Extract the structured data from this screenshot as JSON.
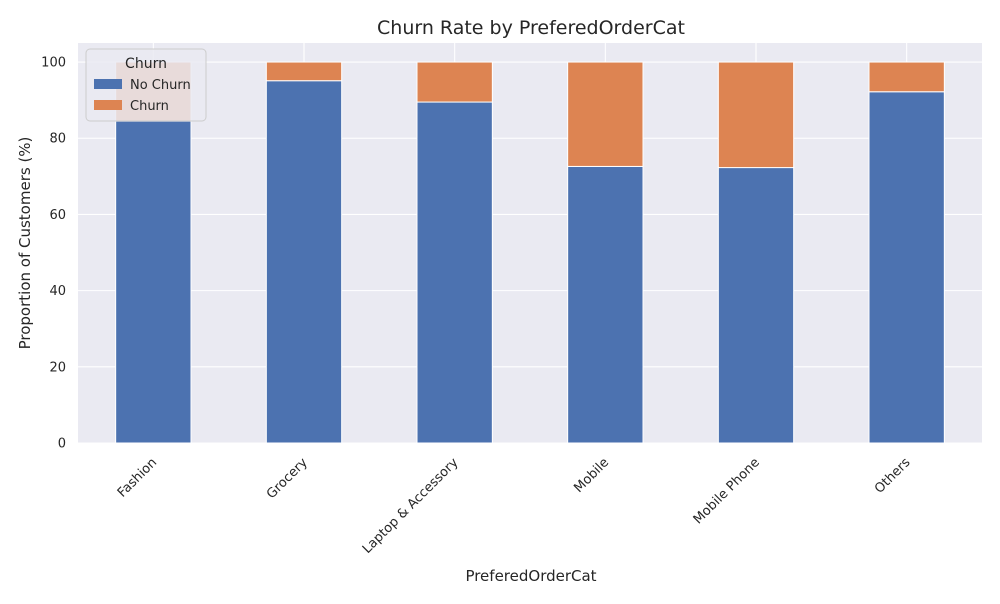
{
  "chart_data": {
    "type": "bar",
    "stacked": true,
    "title": "Churn Rate by PreferedOrderCat",
    "xlabel": "PreferedOrderCat",
    "ylabel": "Proportion of Customers (%)",
    "ylim": [
      0,
      105
    ],
    "yticks": [
      "0",
      "20",
      "40",
      "60",
      "80",
      "100"
    ],
    "grid": true,
    "legend": {
      "title": "Churn",
      "position": "top-left"
    },
    "categories": [
      "Fashion",
      "Grocery",
      "Laptop & Accessory",
      "Mobile",
      "Mobile Phone",
      "Others"
    ],
    "series": [
      {
        "name": "No Churn",
        "color": "#4c72b0",
        "values": [
          84.5,
          95.1,
          89.5,
          72.6,
          72.3,
          92.2
        ]
      },
      {
        "name": "Churn",
        "color": "#dd8452",
        "values": [
          15.5,
          4.9,
          10.5,
          27.4,
          27.7,
          7.8
        ]
      }
    ]
  },
  "colors": {
    "plot_background": "#eaeaf2",
    "grid": "#ffffff"
  }
}
